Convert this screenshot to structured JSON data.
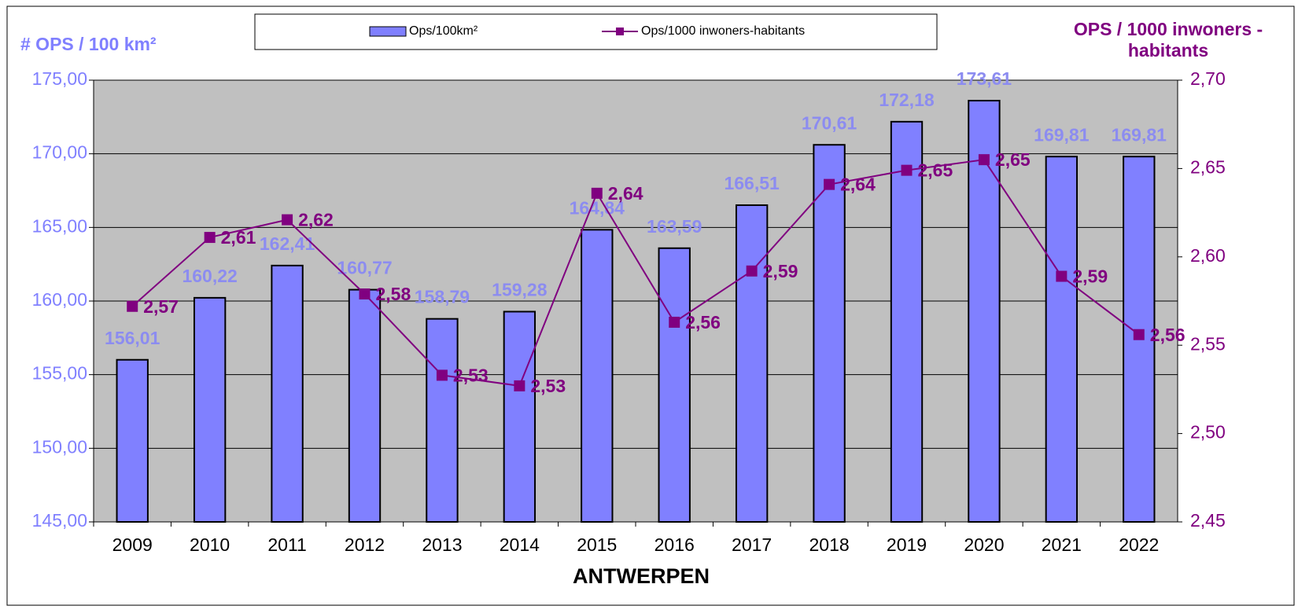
{
  "chart_data": {
    "type": "bar",
    "title": "ANTWERPEN",
    "y_label": "# OPS / 100 km²",
    "y2_label": "OPS / 1000 inwoners - habitants",
    "categories": [
      "2009",
      "2010",
      "2011",
      "2012",
      "2013",
      "2014",
      "2015",
      "2016",
      "2017",
      "2018",
      "2019",
      "2020",
      "2021",
      "2022"
    ],
    "series": [
      {
        "name": "Ops/100km²",
        "type": "bar",
        "color": "#8080ff",
        "values": [
          156.01,
          160.22,
          162.41,
          160.77,
          158.79,
          159.28,
          164.84,
          163.59,
          166.51,
          170.61,
          172.18,
          173.61,
          169.81,
          169.81
        ],
        "value_labels": [
          "156,01",
          "160,22",
          "162,41",
          "160,77",
          "158,79",
          "159,28",
          "164,84",
          "163,59",
          "166,51",
          "170,61",
          "172,18",
          "173,61",
          "169,81",
          "169,81"
        ]
      },
      {
        "name": "Ops/1000 inwoners-habitants",
        "type": "line",
        "axis": "y2",
        "color": "#800080",
        "values": [
          2.572,
          2.611,
          2.621,
          2.579,
          2.533,
          2.527,
          2.636,
          2.563,
          2.592,
          2.641,
          2.649,
          2.655,
          2.589,
          2.556
        ],
        "value_labels": [
          "2,57",
          "2,61",
          "2,62",
          "2,58",
          "2,53",
          "2,53",
          "2,64",
          "2,56",
          "2,59",
          "2,64",
          "2,65",
          "2,65",
          "2,59",
          "2,56"
        ]
      }
    ],
    "ylim": [
      145,
      175
    ],
    "yticks": [
      {
        "value": 145,
        "label": "145,00"
      },
      {
        "value": 150,
        "label": "150,00"
      },
      {
        "value": 155,
        "label": "155,00"
      },
      {
        "value": 160,
        "label": "160,00"
      },
      {
        "value": 165,
        "label": "165,00"
      },
      {
        "value": 170,
        "label": "170,00"
      },
      {
        "value": 175,
        "label": "175,00"
      }
    ],
    "y2lim": [
      2.45,
      2.7
    ],
    "y2ticks": [
      {
        "value": 2.45,
        "label": "2,45"
      },
      {
        "value": 2.5,
        "label": "2,50"
      },
      {
        "value": 2.55,
        "label": "2,55"
      },
      {
        "value": 2.6,
        "label": "2,60"
      },
      {
        "value": 2.65,
        "label": "2,65"
      },
      {
        "value": 2.7,
        "label": "2,70"
      }
    ],
    "grid": true,
    "legend": "top"
  }
}
